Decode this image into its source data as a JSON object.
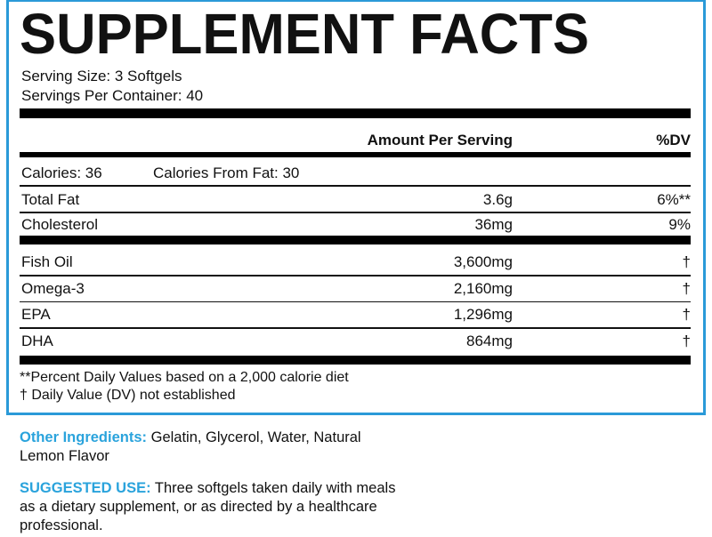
{
  "header": {
    "title": "SUPPLEMENT FACTS",
    "serving_size": "Serving Size: 3 Softgels",
    "servings_per_container": "Servings Per Container: 40"
  },
  "table": {
    "columns": [
      "Amount Per Serving",
      "%DV"
    ],
    "calories": "Calories: 36",
    "calories_from_fat": "Calories From Fat: 30",
    "rows": [
      [
        "Total Fat",
        "3.6g",
        "6%**"
      ],
      [
        "Cholesterol",
        "36mg",
        "9%"
      ]
    ],
    "rows2": [
      [
        "Fish Oil",
        "3,600mg",
        "†"
      ],
      [
        "Omega-3",
        "2,160mg",
        "†"
      ],
      [
        "EPA",
        "1,296mg",
        "†"
      ],
      [
        "DHA",
        "864mg",
        "†"
      ]
    ]
  },
  "footnotes": [
    "**Percent Daily Values based on a 2,000 calorie diet",
    "† Daily Value (DV) not established"
  ],
  "other_ingredients": {
    "label": "Other Ingredients:",
    "text": "Gelatin, Glycerol, Water, Natural Lemon Flavor"
  },
  "suggested_use": {
    "label": "SUGGESTED USE:",
    "text": "Three softgels taken daily with meals as a dietary supplement, or as directed by a healthcare professional."
  }
}
